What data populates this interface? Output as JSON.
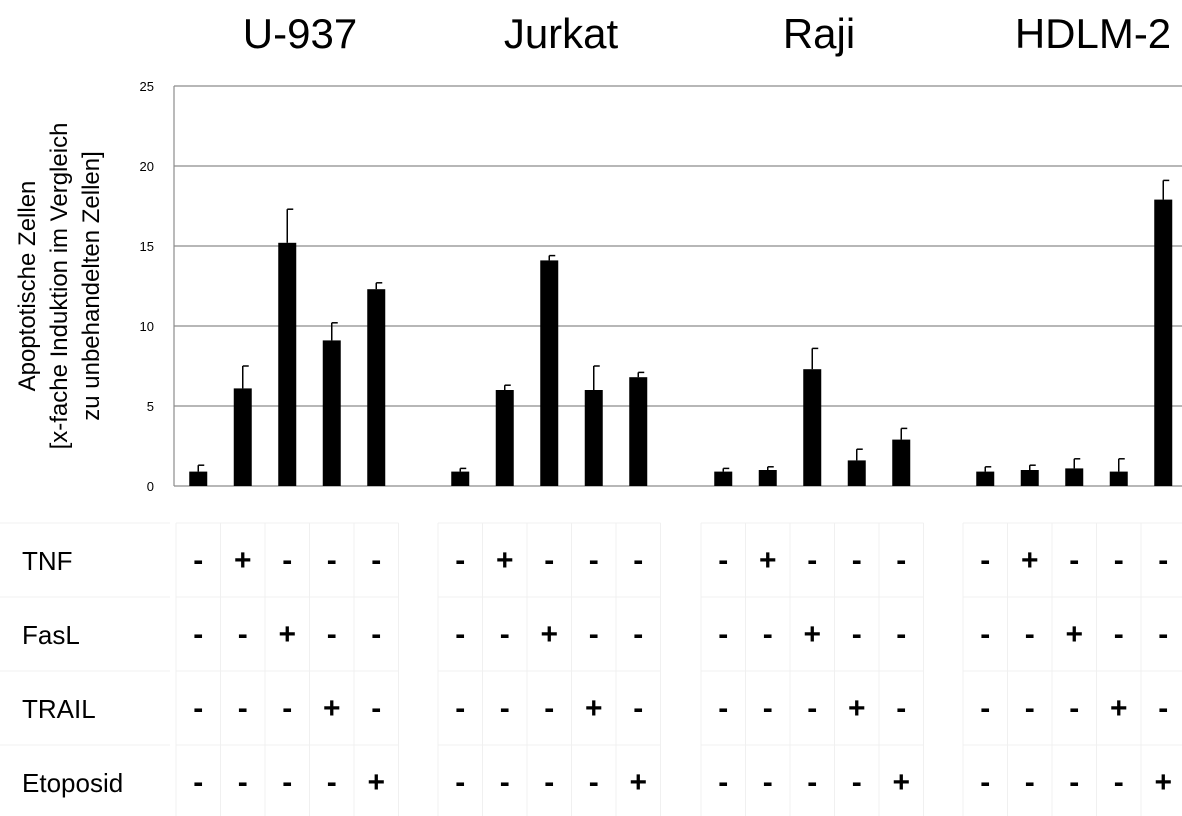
{
  "chart_data": {
    "type": "bar",
    "ylabel_lines": [
      "Apoptotische Zellen",
      "[x-fache Induktion im Vergleich",
      "zu unbehandelten Zellen]"
    ],
    "ylim": [
      0,
      25
    ],
    "yticks": [
      "0",
      "5",
      "10",
      "15",
      "20",
      "25"
    ],
    "grid": true,
    "groups": [
      {
        "name": "U-937",
        "values": [
          0.9,
          6.1,
          15.2,
          9.1,
          12.3
        ],
        "errors": [
          0.4,
          1.4,
          2.1,
          1.1,
          0.4
        ]
      },
      {
        "name": "Jurkat",
        "values": [
          0.9,
          6.0,
          14.1,
          6.0,
          6.8
        ],
        "errors": [
          0.2,
          0.3,
          0.3,
          1.5,
          0.3
        ]
      },
      {
        "name": "Raji",
        "values": [
          0.9,
          1.0,
          7.3,
          1.6,
          2.9
        ],
        "errors": [
          0.2,
          0.2,
          1.3,
          0.7,
          0.7
        ]
      },
      {
        "name": "HDLM-2",
        "values": [
          0.9,
          1.0,
          1.1,
          0.9,
          17.9
        ],
        "errors": [
          0.3,
          0.3,
          0.6,
          0.8,
          1.2
        ]
      }
    ]
  },
  "treatment_table": {
    "rows": [
      {
        "label": "TNF",
        "signs": [
          "-",
          "+",
          "-",
          "-",
          "-"
        ]
      },
      {
        "label": "FasL",
        "signs": [
          "-",
          "-",
          "+",
          "-",
          "-"
        ]
      },
      {
        "label": "TRAIL",
        "signs": [
          "-",
          "-",
          "-",
          "+",
          "-"
        ]
      },
      {
        "label": "Etoposid",
        "signs": [
          "-",
          "-",
          "-",
          "-",
          "+"
        ]
      }
    ]
  }
}
